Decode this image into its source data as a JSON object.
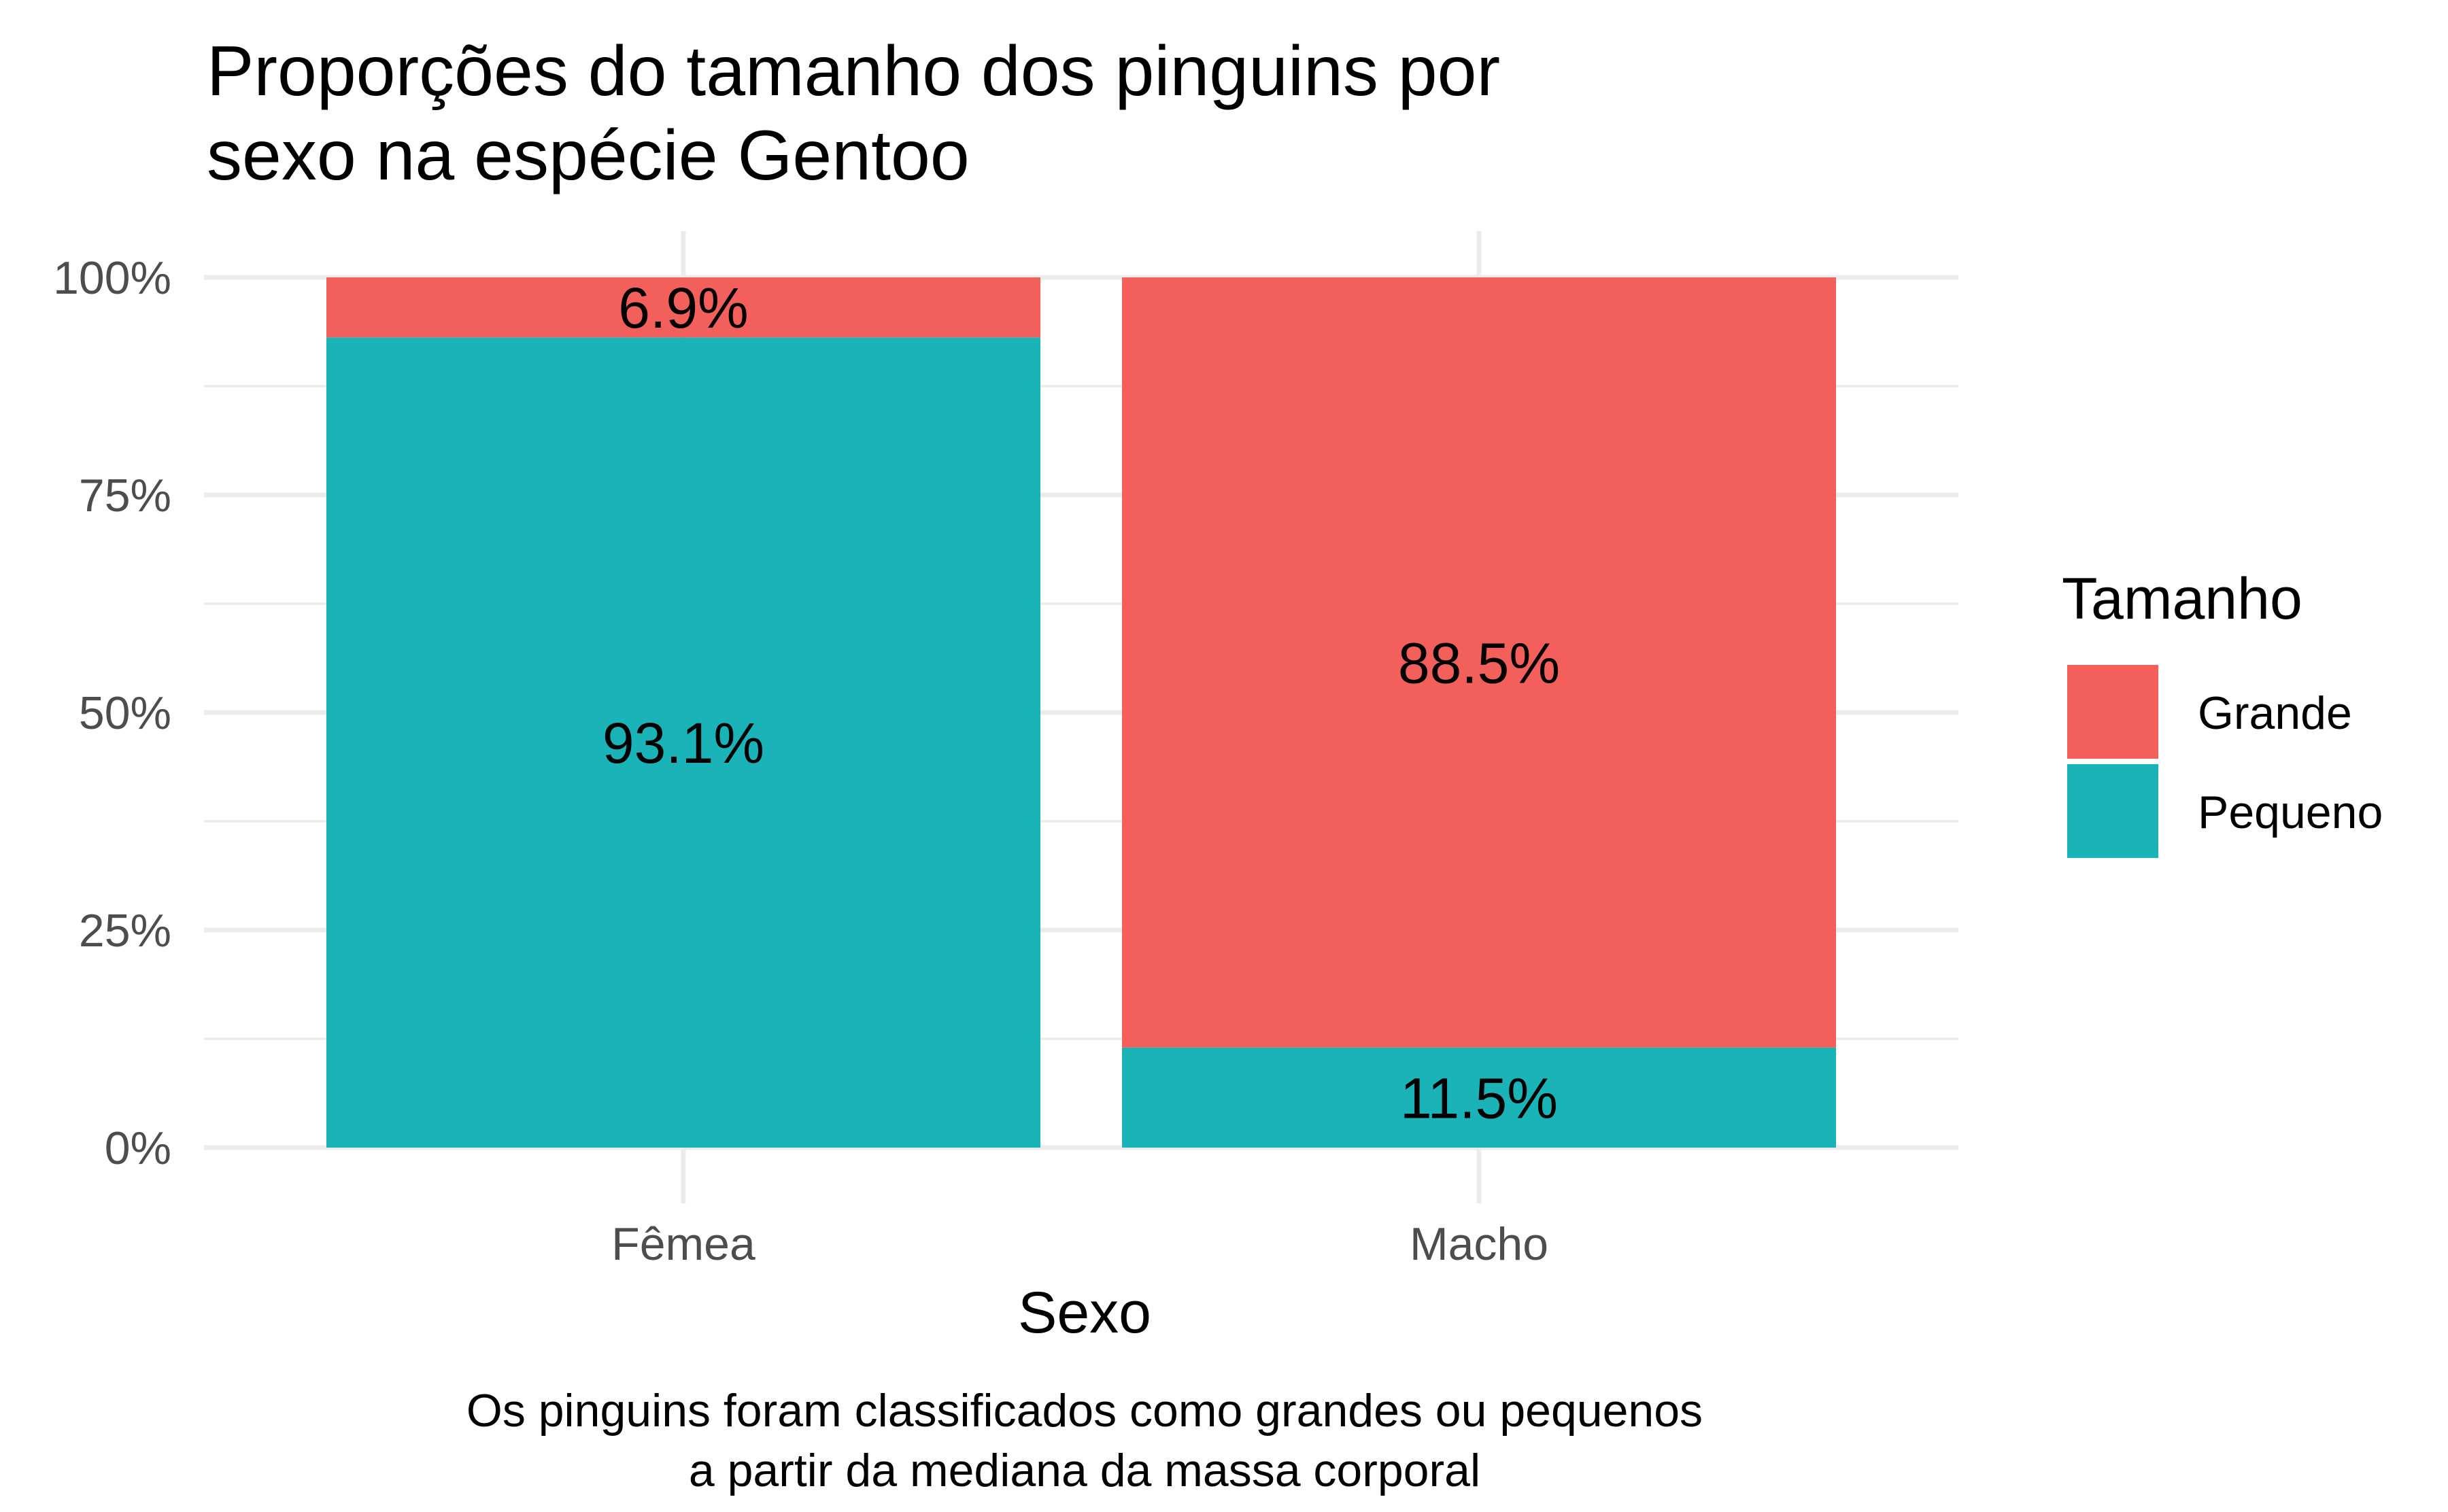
{
  "chart_data": {
    "type": "bar",
    "stacked": true,
    "title_lines": [
      "Proporções do tamanho dos pinguins por",
      "sexo na espécie Gentoo"
    ],
    "xlabel": "Sexo",
    "ylabel": "",
    "categories": [
      "Fêmea",
      "Macho"
    ],
    "ylim": [
      0,
      100
    ],
    "y_ticks": [
      {
        "value": 0,
        "label": "0%"
      },
      {
        "value": 25,
        "label": "25%"
      },
      {
        "value": 50,
        "label": "50%"
      },
      {
        "value": 75,
        "label": "75%"
      },
      {
        "value": 100,
        "label": "100%"
      }
    ],
    "series": [
      {
        "name": "Grande",
        "color": "#F3605C",
        "values": [
          6.9,
          88.5
        ],
        "labels": [
          "6.9%",
          "88.5%"
        ]
      },
      {
        "name": "Pequeno",
        "color": "#1AB4B8",
        "values": [
          93.1,
          11.5
        ],
        "labels": [
          "93.1%",
          "11.5%"
        ]
      }
    ],
    "legend": {
      "title": "Tamanho",
      "position": "right",
      "items": [
        "Grande",
        "Pequeno"
      ]
    },
    "grid": true,
    "caption_lines": [
      "Os pinguins foram classificados como grandes ou pequenos",
      "a partir da mediana da massa corporal"
    ]
  }
}
